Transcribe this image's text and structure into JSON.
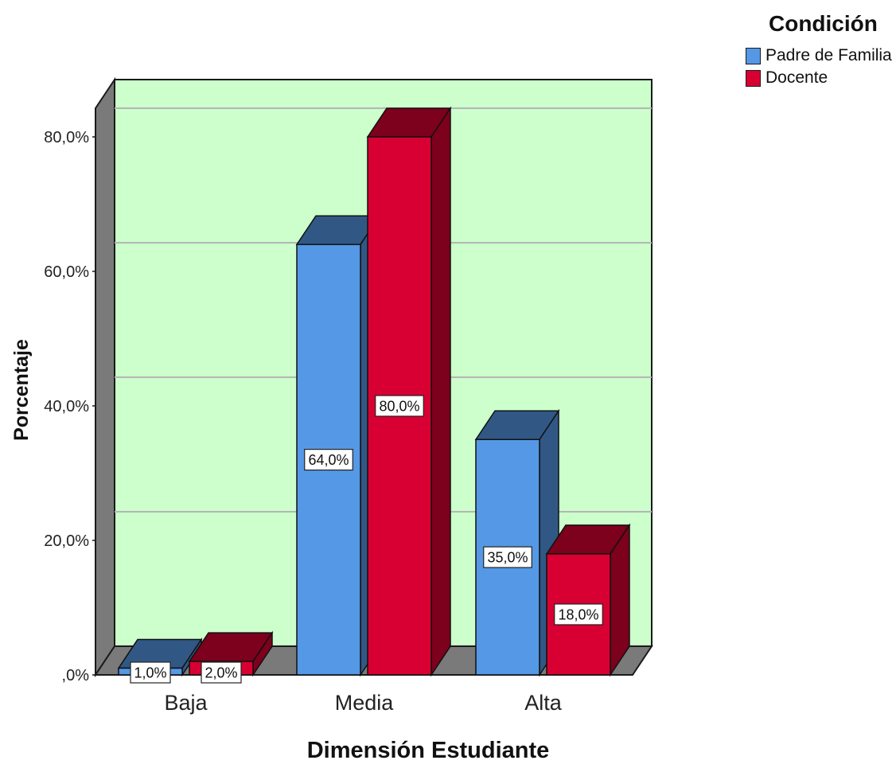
{
  "chart_data": {
    "type": "bar",
    "title": "",
    "xlabel": "Dimensión Estudiante",
    "ylabel": "Porcentaje",
    "categories": [
      "Baja",
      "Media",
      "Alta"
    ],
    "series": [
      {
        "name": "Padre de Familia",
        "values": [
          1.0,
          64.0,
          35.0
        ],
        "color": "#5598e5",
        "data_labels": [
          "1,0%",
          "64,0%",
          "35,0%"
        ]
      },
      {
        "name": "Docente",
        "values": [
          2.0,
          80.0,
          18.0
        ],
        "color": "#d80032",
        "data_labels": [
          "2,0%",
          "80,0%",
          "18,0%"
        ]
      }
    ],
    "ylim": [
      0,
      80
    ],
    "yticks": [
      0,
      20,
      40,
      60,
      80
    ],
    "ytick_labels": [
      ",0%",
      "20,0%",
      "40,0%",
      "60,0%",
      "80,0%"
    ],
    "grid": true,
    "legend_title": "Condición",
    "legend_position": "top-right",
    "style": "3d",
    "colors": {
      "plot_background": "#ccffcc",
      "gridline": "#b5b5b5",
      "wall_side": "#7a7a7a",
      "floor": "#7a7a7a"
    }
  }
}
